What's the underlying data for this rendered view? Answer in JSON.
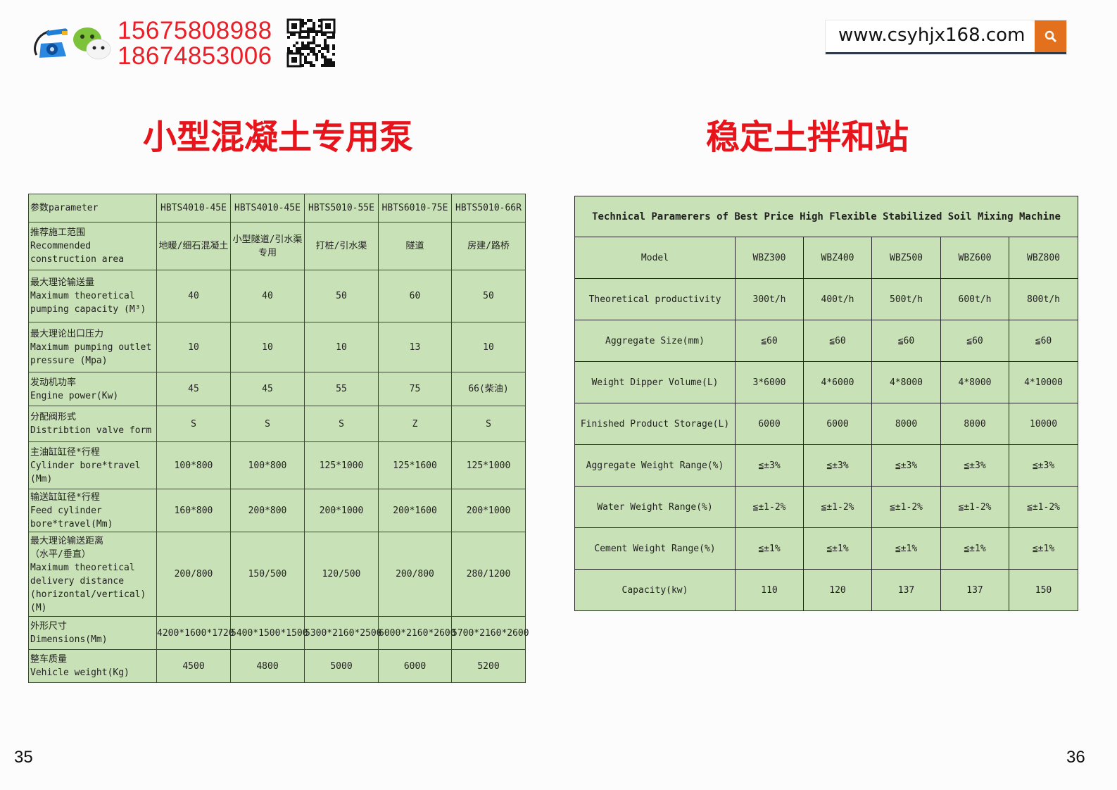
{
  "header": {
    "phones": [
      "15675808988",
      "18674853006"
    ],
    "website": "www.csyhjx168.com",
    "icons": [
      "phone-icon",
      "wechat-icon",
      "qr-code-icon",
      "search-icon"
    ],
    "accent_color": "#e2701c",
    "phone_color": "#ee1c25"
  },
  "left_page": {
    "title": "小型混凝土专用泵",
    "page_number": "35",
    "table": {
      "header": [
        "参数parameter",
        "HBTS4010-45E",
        "HBTS4010-45E",
        "HBTS5010-55E",
        "HBTS6010-75E",
        "HBTS5010-66R"
      ],
      "rows": [
        {
          "label": [
            "推荐施工范围",
            "Recommended",
            "construction area"
          ],
          "values": [
            "地暖/细石混凝土",
            "小型隧道/引水渠专用",
            "打桩/引水渠",
            "隧道",
            "房建/路桥"
          ]
        },
        {
          "label": [
            "最大理论输送量",
            "Maximum theoretical",
            "pumping capacity (M³)"
          ],
          "values": [
            "40",
            "40",
            "50",
            "60",
            "50"
          ]
        },
        {
          "label": [
            "最大理论出口压力",
            "Maximum pumping outlet",
            "pressure (Mpa)"
          ],
          "values": [
            "10",
            "10",
            "10",
            "13",
            "10"
          ]
        },
        {
          "label": [
            "发动机功率",
            "Engine power(Kw)"
          ],
          "values": [
            "45",
            "45",
            "55",
            "75",
            "66(柴油)"
          ]
        },
        {
          "label": [
            "分配阀形式",
            "Distribtion valve form"
          ],
          "values": [
            "S",
            "S",
            "S",
            "Z",
            "S"
          ]
        },
        {
          "label": [
            "主油缸缸径*行程",
            "Cylinder bore*travel",
            "(Mm)"
          ],
          "values": [
            "100*800",
            "100*800",
            "125*1000",
            "125*1600",
            "125*1000"
          ]
        },
        {
          "label": [
            "输送缸缸径*行程",
            "Feed cylinder",
            "bore*travel(Mm)"
          ],
          "values": [
            "160*800",
            "200*800",
            "200*1000",
            "200*1600",
            "200*1000"
          ]
        },
        {
          "label": [
            "最大理论输送距离",
            "（水平/垂直）",
            "Maximum theoretical",
            "delivery distance",
            "(horizontal/vertical)",
            "(M)"
          ],
          "values": [
            "200/800",
            "150/500",
            "120/500",
            "200/800",
            "280/1200"
          ]
        },
        {
          "label": [
            "外形尺寸",
            "Dimensions(Mm)"
          ],
          "values": [
            "4200*1600*1720",
            "5400*1500*1500",
            "5300*2160*2500",
            "6000*2160*2600",
            "5700*2160*2600"
          ]
        },
        {
          "label": [
            "整车质量",
            "Vehicle weight(Kg)"
          ],
          "values": [
            "4500",
            "4800",
            "5000",
            "6000",
            "5200"
          ]
        }
      ]
    }
  },
  "right_page": {
    "title": "稳定土拌和站",
    "page_number": "36",
    "table": {
      "title": "Technical Paramerers of Best Price High Flexible Stabilized Soil Mixing Machine",
      "rows": [
        {
          "label": "Model",
          "values": [
            "WBZ300",
            "WBZ400",
            "WBZ500",
            "WBZ600",
            "WBZ800"
          ]
        },
        {
          "label": "Theoretical productivity",
          "values": [
            "300t/h",
            "400t/h",
            "500t/h",
            "600t/h",
            "800t/h"
          ]
        },
        {
          "label": "Aggregate Size(mm)",
          "values": [
            "≦60",
            "≦60",
            "≦60",
            "≦60",
            "≦60"
          ]
        },
        {
          "label": "Weight Dipper Volume(L)",
          "values": [
            "3*6000",
            "4*6000",
            "4*8000",
            "4*8000",
            "4*10000"
          ]
        },
        {
          "label": "Finished Product Storage(L)",
          "values": [
            "6000",
            "6000",
            "8000",
            "8000",
            "10000"
          ]
        },
        {
          "label": "Aggregate Weight Range(%)",
          "values": [
            "≦±3%",
            "≦±3%",
            "≦±3%",
            "≦±3%",
            "≦±3%"
          ]
        },
        {
          "label": "Water Weight Range(%)",
          "values": [
            "≦±1-2%",
            "≦±1-2%",
            "≦±1-2%",
            "≦±1-2%",
            "≦±1-2%"
          ]
        },
        {
          "label": "Cement Weight Range(%)",
          "values": [
            "≦±1%",
            "≦±1%",
            "≦±1%",
            "≦±1%",
            "≦±1%"
          ]
        },
        {
          "label": "Capacity(kw)",
          "values": [
            "110",
            "120",
            "137",
            "137",
            "150"
          ]
        }
      ]
    }
  }
}
